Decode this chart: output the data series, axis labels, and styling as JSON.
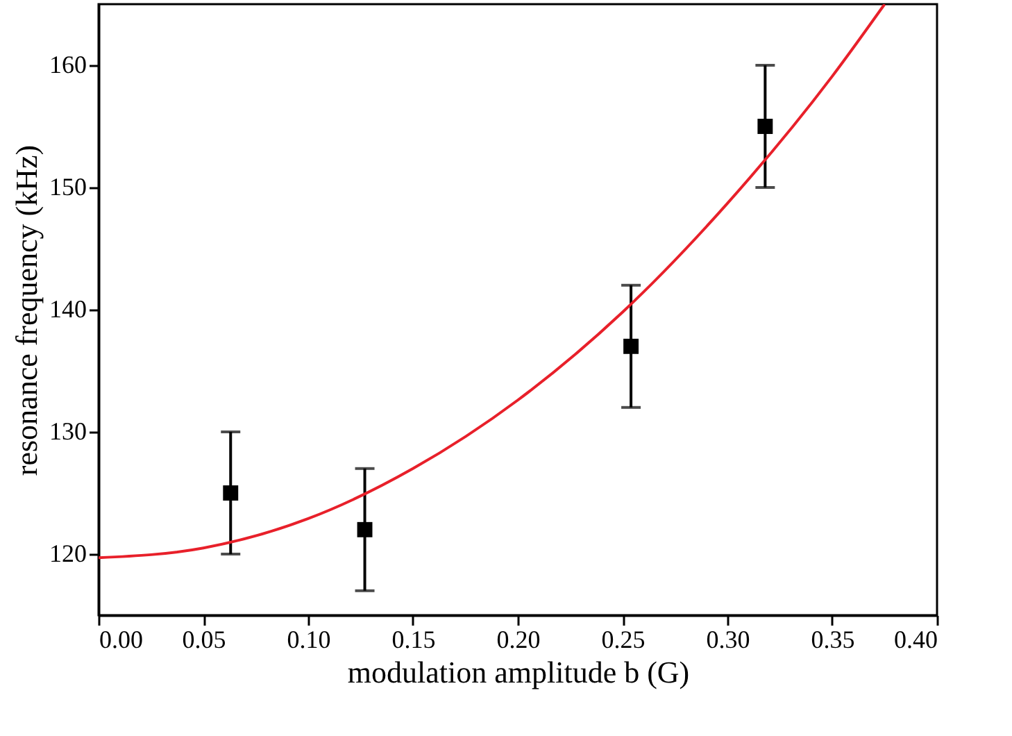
{
  "chart_data": {
    "type": "scatter",
    "xlabel": "modulation amplitude b (G)",
    "ylabel": "resonance frequency  (kHz)",
    "xlim": [
      0,
      0.4
    ],
    "ylim": [
      115,
      165
    ],
    "xticks": [
      {
        "value": 0,
        "label": "0.00"
      },
      {
        "value": 0.05,
        "label": "0.05"
      },
      {
        "value": 0.1,
        "label": "0.10"
      },
      {
        "value": 0.15,
        "label": "0.15"
      },
      {
        "value": 0.2,
        "label": "0.20"
      },
      {
        "value": 0.25,
        "label": "0.25"
      },
      {
        "value": 0.3,
        "label": "0.30"
      },
      {
        "value": 0.35,
        "label": "0.35"
      },
      {
        "value": 0.4,
        "label": "0.40"
      }
    ],
    "yticks": [
      120,
      130,
      140,
      150,
      160
    ],
    "marker": "square",
    "grid": false,
    "series": [
      {
        "color": "#000000",
        "x": [
          0.063,
          0.127,
          0.254,
          0.318
        ],
        "values": [
          125,
          122,
          137,
          155
        ],
        "errors": [
          5,
          5,
          5,
          5
        ]
      },
      {
        "type": "line",
        "color": "#e8202a",
        "marker": "none",
        "line_style": "solid",
        "x": [
          0,
          0.05,
          0.1,
          0.15,
          0.2,
          0.25,
          0.3,
          0.35,
          0.375
        ],
        "values": [
          119.7,
          120.5,
          122.9,
          127.0,
          132.6,
          139.8,
          148.7,
          159.1,
          165
        ]
      }
    ]
  }
}
